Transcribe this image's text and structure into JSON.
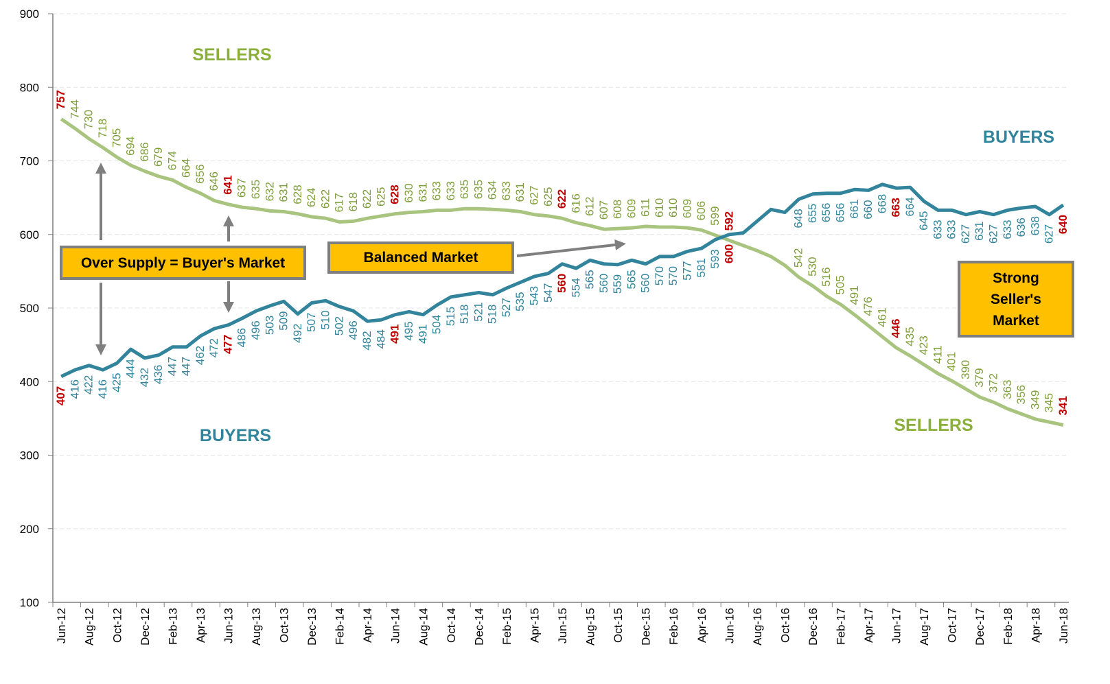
{
  "chart_data": {
    "type": "line",
    "categories": [
      "Jun-12",
      null,
      "Aug-12",
      null,
      "Oct-12",
      null,
      "Dec-12",
      null,
      "Feb-13",
      null,
      "Apr-13",
      null,
      "Jun-13",
      null,
      "Aug-13",
      null,
      "Oct-13",
      null,
      "Dec-13",
      null,
      "Feb-14",
      null,
      "Apr-14",
      null,
      "Jun-14",
      null,
      "Aug-14",
      null,
      "Oct-14",
      null,
      "Dec-14",
      null,
      "Feb-15",
      null,
      "Apr-15",
      null,
      "Jun-15",
      null,
      "Aug-15",
      null,
      "Oct-15",
      null,
      "Dec-15",
      null,
      "Feb-16",
      null,
      "Apr-16",
      null,
      "Jun-16",
      null,
      "Aug-16",
      null,
      "Oct-16",
      null,
      "Dec-16",
      null,
      "Feb-17",
      null,
      "Apr-17",
      null,
      "Jun-17",
      null,
      "Aug-17",
      null,
      "Oct-17",
      null,
      "Dec-17",
      null,
      "Feb-18",
      null,
      "Apr-18",
      null,
      "Jun-18"
    ],
    "series": [
      {
        "name": "Sellers",
        "color": "#a9c47f",
        "label_color": "#7f9f3a",
        "label_side": "above",
        "values": [
          757,
          744,
          730,
          718,
          705,
          694,
          686,
          679,
          674,
          664,
          656,
          646,
          641,
          637,
          635,
          632,
          631,
          628,
          624,
          622,
          617,
          618,
          622,
          625,
          628,
          630,
          631,
          633,
          633,
          635,
          635,
          634,
          633,
          631,
          627,
          625,
          622,
          616,
          612,
          607,
          608,
          609,
          611,
          610,
          610,
          609,
          606,
          599,
          592,
          585,
          578,
          570,
          558,
          542,
          530,
          516,
          505,
          491,
          476,
          461,
          446,
          435,
          423,
          411,
          401,
          390,
          379,
          372,
          363,
          356,
          349,
          345,
          341
        ],
        "value_labels": [
          "757",
          "744",
          "730",
          "718",
          "705",
          "694",
          "686",
          "679",
          "674",
          "664",
          "656",
          "646",
          "641",
          "637",
          "635",
          "632",
          "631",
          "628",
          "624",
          "622",
          "617",
          "618",
          "622",
          "625",
          "628",
          "630",
          "631",
          "633",
          "633",
          "635",
          "635",
          "634",
          "633",
          "631",
          "627",
          "625",
          "622",
          "616",
          "612",
          "607",
          "608",
          "609",
          "611",
          "610",
          "610",
          "609",
          "606",
          "599",
          "592",
          null,
          null,
          null,
          null,
          "542",
          "530",
          "516",
          "505",
          "491",
          "476",
          "461",
          "446",
          "435",
          "423",
          "411",
          "401",
          "390",
          "379",
          "372",
          "363",
          "356",
          "349",
          "345",
          "341"
        ]
      },
      {
        "name": "Buyers",
        "color": "#31849b",
        "label_color": "#31859c",
        "label_side": "below",
        "values": [
          407,
          416,
          422,
          416,
          425,
          444,
          432,
          436,
          447,
          447,
          462,
          472,
          477,
          486,
          496,
          503,
          509,
          492,
          507,
          510,
          502,
          496,
          482,
          484,
          491,
          495,
          491,
          504,
          515,
          518,
          521,
          518,
          527,
          535,
          543,
          547,
          560,
          554,
          565,
          560,
          559,
          565,
          560,
          570,
          570,
          577,
          581,
          593,
          600,
          602,
          618,
          634,
          630,
          648,
          655,
          656,
          656,
          661,
          660,
          668,
          663,
          664,
          645,
          633,
          633,
          627,
          631,
          627,
          633,
          636,
          638,
          627,
          640
        ],
        "value_labels": [
          "407",
          "416",
          "422",
          "416",
          "425",
          "444",
          "432",
          "436",
          "447",
          "447",
          "462",
          "472",
          "477",
          "486",
          "496",
          "503",
          "509",
          "492",
          "507",
          "510",
          "502",
          "496",
          "482",
          "484",
          "491",
          "495",
          "491",
          "504",
          "515",
          "518",
          "521",
          "518",
          "527",
          "535",
          "543",
          "547",
          "560",
          "554",
          "565",
          "560",
          "559",
          "565",
          "560",
          "570",
          "570",
          "577",
          "581",
          "593",
          "600",
          null,
          null,
          null,
          null,
          "648",
          "655",
          "656",
          "656",
          "661",
          "660",
          "668",
          "663",
          "664",
          "645",
          "633",
          "633",
          "627",
          "631",
          "627",
          "633",
          "636",
          "638",
          "627",
          "640"
        ]
      }
    ],
    "highlight_color": "#c00000",
    "ylim": [
      100,
      900
    ],
    "yticks": [
      100,
      200,
      300,
      400,
      500,
      600,
      700,
      800,
      900
    ],
    "grid": true,
    "annotations": [
      "SELLERS",
      "BUYERS",
      "BUYERS",
      "SELLERS",
      "Over Supply = Buyer's Market",
      "Balanced Market",
      "Strong Seller's Market"
    ]
  }
}
